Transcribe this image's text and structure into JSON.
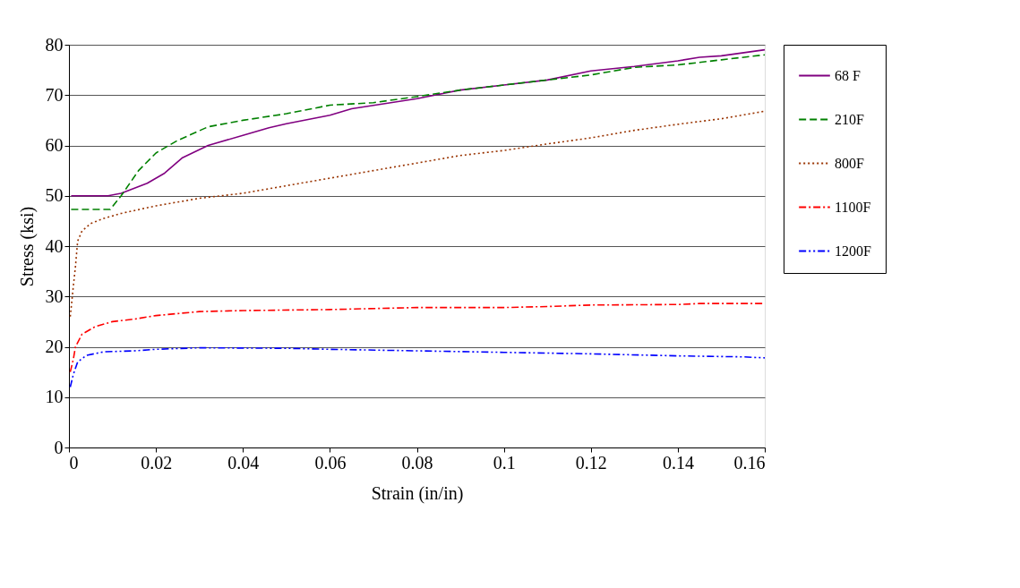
{
  "chart_data": {
    "type": "line",
    "xlabel": "Strain (in/in)",
    "ylabel": "Stress (ksi)",
    "xlim": [
      0,
      0.16
    ],
    "xticks": [
      0,
      0.02,
      0.04,
      0.06,
      0.08,
      0.1,
      0.12,
      0.14,
      0.16
    ],
    "ylim": [
      0,
      80
    ],
    "yticks": [
      0,
      10,
      20,
      30,
      40,
      50,
      60,
      70,
      80
    ],
    "grid": "y",
    "legend": "right",
    "marker": "none",
    "series": [
      {
        "name": "68 F",
        "color": "#800080",
        "line_style": "solid",
        "x": [
          0.0005,
          0.009,
          0.012,
          0.018,
          0.022,
          0.026,
          0.032,
          0.04,
          0.046,
          0.05,
          0.06,
          0.065,
          0.08,
          0.09,
          0.1,
          0.11,
          0.12,
          0.13,
          0.14,
          0.145,
          0.15,
          0.16
        ],
        "values": [
          50,
          50,
          50.5,
          52.5,
          54.5,
          57.5,
          60,
          62,
          63.5,
          64.3,
          66,
          67.3,
          69.3,
          71,
          72,
          73,
          74.8,
          75.7,
          76.8,
          77.5,
          77.8,
          79
        ]
      },
      {
        "name": "210F",
        "color": "#008000",
        "line_style": "dashed",
        "x": [
          0.0005,
          0.0095,
          0.012,
          0.016,
          0.02,
          0.025,
          0.032,
          0.04,
          0.05,
          0.06,
          0.07,
          0.08,
          0.09,
          0.1,
          0.11,
          0.12,
          0.13,
          0.14,
          0.15,
          0.16
        ],
        "values": [
          47.3,
          47.3,
          50,
          55,
          58.5,
          61,
          63.7,
          65,
          66.3,
          68,
          68.5,
          69.7,
          71,
          72,
          73,
          74,
          75.5,
          76,
          77,
          78
        ]
      },
      {
        "name": "800F",
        "color": "#993300",
        "line_style": "dotted",
        "x": [
          0.0003,
          0.001,
          0.0015,
          0.002,
          0.003,
          0.005,
          0.008,
          0.012,
          0.02,
          0.03,
          0.04,
          0.05,
          0.06,
          0.07,
          0.08,
          0.09,
          0.1,
          0.11,
          0.12,
          0.13,
          0.14,
          0.15,
          0.16
        ],
        "values": [
          26,
          32,
          36,
          41,
          43,
          44.5,
          45.5,
          46.5,
          48,
          49.5,
          50.5,
          52,
          53.5,
          55,
          56.5,
          58,
          59,
          60.3,
          61.5,
          63,
          64.2,
          65.3,
          66.8
        ]
      },
      {
        "name": "1100F",
        "color": "#ff0000",
        "line_style": "dashdot",
        "x": [
          0.0003,
          0.001,
          0.0015,
          0.003,
          0.006,
          0.01,
          0.015,
          0.02,
          0.03,
          0.04,
          0.06,
          0.08,
          0.1,
          0.11,
          0.12,
          0.14,
          0.145,
          0.16
        ],
        "values": [
          15,
          17.5,
          20,
          22.5,
          24,
          25,
          25.5,
          26.2,
          27,
          27.2,
          27.4,
          27.8,
          27.8,
          28,
          28.3,
          28.4,
          28.6,
          28.6
        ]
      },
      {
        "name": "1200F",
        "color": "#0000ff",
        "line_style": "dashdotdot",
        "x": [
          0.0003,
          0.001,
          0.002,
          0.004,
          0.008,
          0.015,
          0.02,
          0.03,
          0.05,
          0.06,
          0.08,
          0.1,
          0.12,
          0.14,
          0.155,
          0.16
        ],
        "values": [
          12,
          14.5,
          17,
          18.3,
          19,
          19.2,
          19.5,
          19.8,
          19.7,
          19.5,
          19.2,
          18.9,
          18.6,
          18.2,
          18,
          17.8
        ]
      }
    ]
  }
}
